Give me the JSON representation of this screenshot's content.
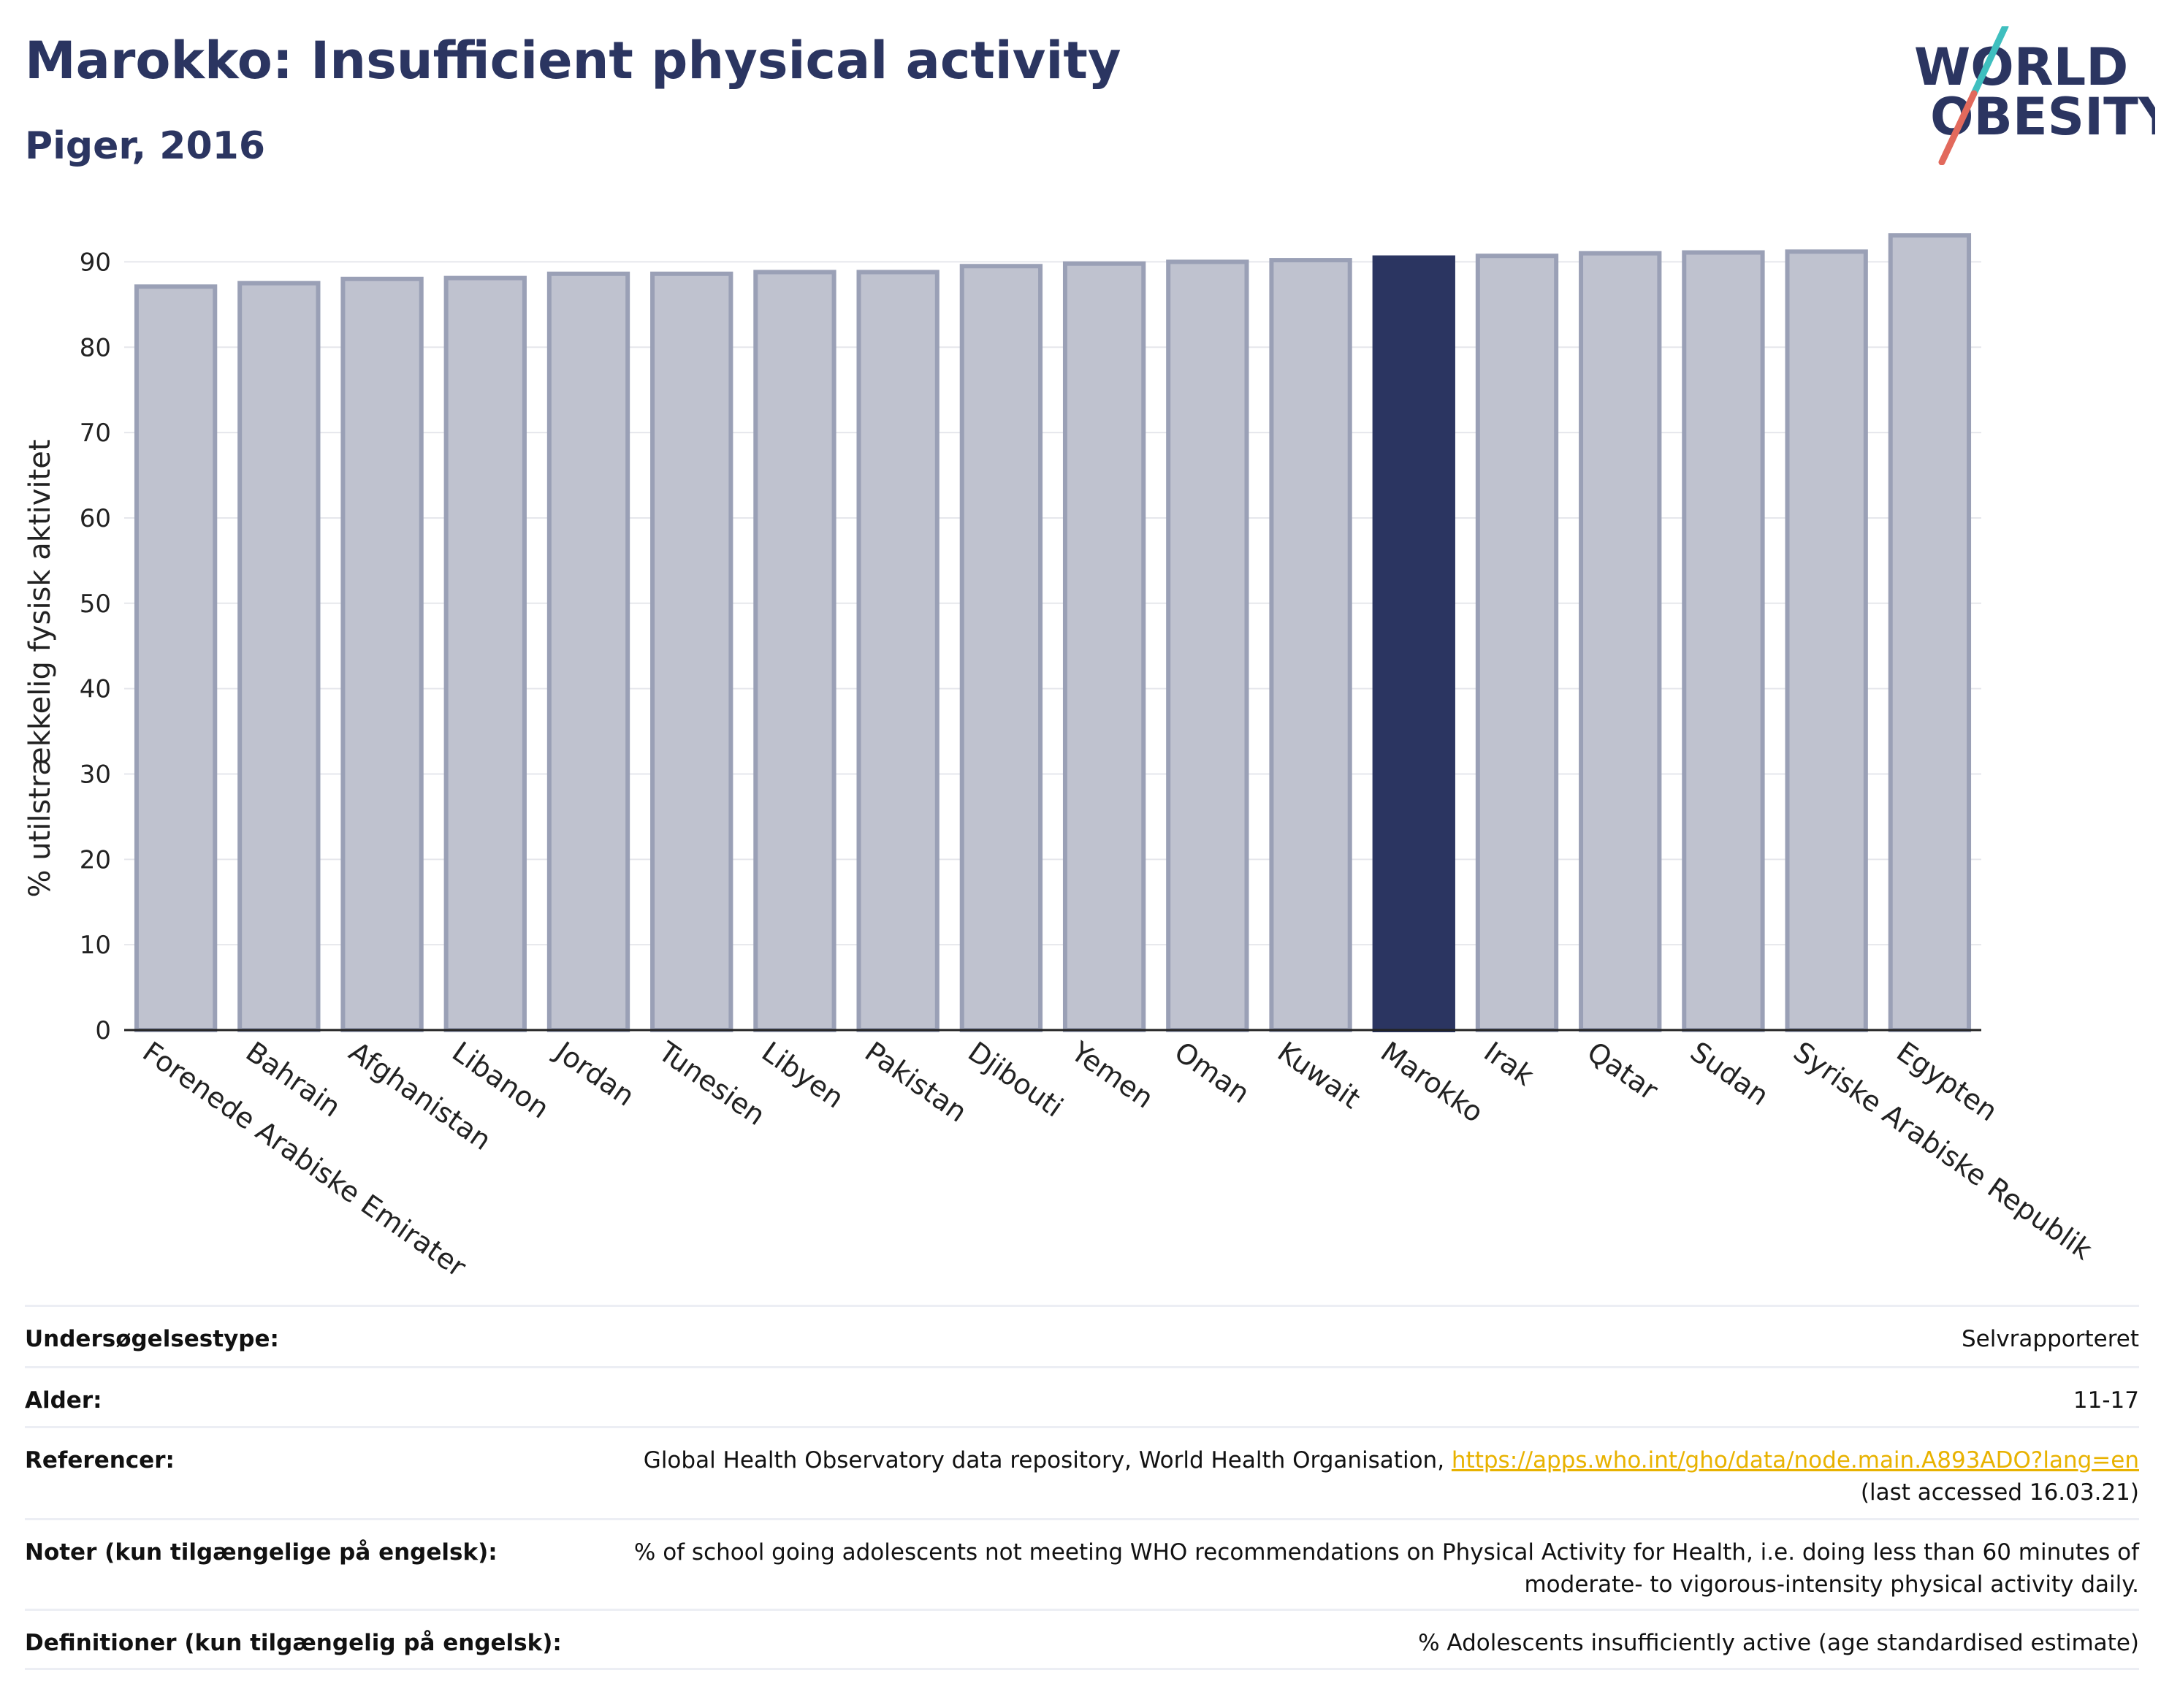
{
  "header": {
    "title": "Marokko: Insufficient physical activity",
    "subtitle": "Piger, 2016"
  },
  "logo": {
    "line1": "WORLD",
    "line2": "OBESITY"
  },
  "colors": {
    "highlight": "#2b3561",
    "bar_fill": "#bfc2cf",
    "bar_stroke": "#9aa0b6",
    "title": "#2b3561",
    "link": "#e8b200"
  },
  "chart_data": {
    "type": "bar",
    "categories": [
      "Forenede Arabiske Emirater",
      "Bahrain",
      "Afghanistan",
      "Libanon",
      "Jordan",
      "Tunesien",
      "Libyen",
      "Pakistan",
      "Djibouti",
      "Yemen",
      "Oman",
      "Kuwait",
      "Marokko",
      "Irak",
      "Qatar",
      "Sudan",
      "Syriske Arabiske Republik",
      "Egypten"
    ],
    "values": [
      87.1,
      87.5,
      88.0,
      88.1,
      88.6,
      88.6,
      88.8,
      88.8,
      89.5,
      89.8,
      90.0,
      90.2,
      90.5,
      90.7,
      91.0,
      91.1,
      91.2,
      93.1
    ],
    "highlight": "Marokko",
    "ylabel": "% utilstrækkelig fysisk aktivitet",
    "ylim": [
      0,
      95
    ],
    "yticks": [
      0,
      10,
      20,
      30,
      40,
      50,
      60,
      70,
      80,
      90
    ],
    "grid": true
  },
  "meta": [
    {
      "key": "Undersøgelsestype:",
      "value": "Selvrapporteret"
    },
    {
      "key": "Alder:",
      "value": "11-17"
    },
    {
      "key": "Referencer:",
      "value": "Global Health Observatory data repository, World Health Organisation,",
      "link": "https://apps.who.int/gho/data/node.main.A893ADO?lang=en",
      "extra": "(last accessed 16.03.21)"
    },
    {
      "key": "Noter (kun tilgængelige på engelsk):",
      "value": "% of school going adolescents not meeting WHO recommendations on Physical Activity for Health, i.e. doing less than 60 minutes of moderate- to vigorous-intensity physical activity daily."
    },
    {
      "key": "Definitioner (kun tilgængelig på engelsk):",
      "value": "% Adolescents insufficiently active (age standardised estimate)"
    }
  ]
}
